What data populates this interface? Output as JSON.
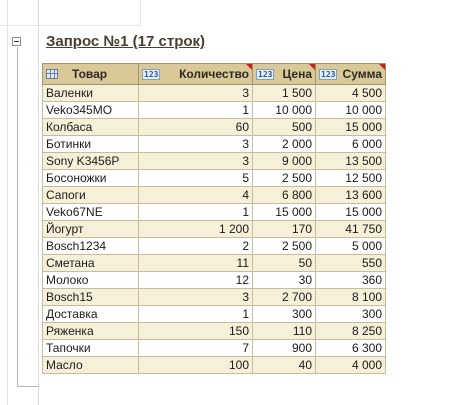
{
  "report": {
    "title": "Запрос №1 (17 строк)",
    "columns": [
      {
        "label": "Товар",
        "icon": "table-icon"
      },
      {
        "label": "Количество",
        "icon": "numeric-type-icon",
        "icon_text": "1|2|3"
      },
      {
        "label": "Цена",
        "icon": "numeric-type-icon",
        "icon_text": "1|2|3"
      },
      {
        "label": "Сумма",
        "icon": "numeric-type-icon",
        "icon_text": "1|2|3"
      }
    ],
    "rows": [
      {
        "product": "Валенки",
        "qty": "3",
        "price": "1 500",
        "sum": "4 500"
      },
      {
        "product": "Veko345MO",
        "qty": "1",
        "price": "10 000",
        "sum": "10 000"
      },
      {
        "product": "Колбаса",
        "qty": "60",
        "price": "500",
        "sum": "15 000"
      },
      {
        "product": "Ботинки",
        "qty": "3",
        "price": "2 000",
        "sum": "6 000"
      },
      {
        "product": "Sony K3456P",
        "qty": "3",
        "price": "9 000",
        "sum": "13 500"
      },
      {
        "product": "Босоножки",
        "qty": "5",
        "price": "2 500",
        "sum": "12 500"
      },
      {
        "product": "Сапоги",
        "qty": "4",
        "price": "6 800",
        "sum": "13 600"
      },
      {
        "product": "Veko67NE",
        "qty": "1",
        "price": "15 000",
        "sum": "15 000"
      },
      {
        "product": "Йогурт",
        "qty": "1 200",
        "price": "170",
        "sum": "41 750"
      },
      {
        "product": "Bosch1234",
        "qty": "2",
        "price": "2 500",
        "sum": "5 000"
      },
      {
        "product": "Сметана",
        "qty": "11",
        "price": "50",
        "sum": "550"
      },
      {
        "product": "Молоко",
        "qty": "12",
        "price": "30",
        "sum": "360"
      },
      {
        "product": "Bosch15",
        "qty": "3",
        "price": "2 700",
        "sum": "8 100"
      },
      {
        "product": "Доставка",
        "qty": "1",
        "price": "300",
        "sum": "300"
      },
      {
        "product": "Ряженка",
        "qty": "150",
        "price": "110",
        "sum": "8 250"
      },
      {
        "product": "Тапочки",
        "qty": "7",
        "price": "900",
        "sum": "6 300"
      },
      {
        "product": "Масло",
        "qty": "100",
        "price": "40",
        "sum": "4 000"
      }
    ]
  },
  "colors": {
    "header_bg": "#d9c999",
    "odd_row_bg": "#f7f0d8",
    "even_row_bg": "#ffffff",
    "title_color": "#4a3f2f",
    "corner_marker": "#cc1f1f"
  }
}
